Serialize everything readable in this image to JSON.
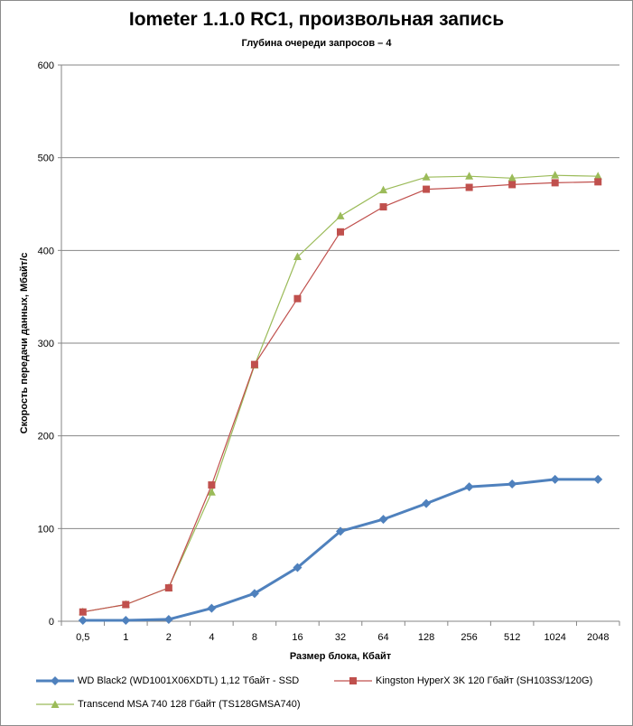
{
  "chart_data": {
    "type": "line",
    "title": "Iometer 1.1.0 RC1, произвольная запись",
    "subtitle": "Глубина очереди запросов – 4",
    "xlabel": "Размер блока, Кбайт",
    "ylabel": "Скорость передачи данных, Мбайт/с",
    "categories": [
      "0,5",
      "1",
      "2",
      "4",
      "8",
      "16",
      "32",
      "64",
      "128",
      "256",
      "512",
      "1024",
      "2048"
    ],
    "ylim": [
      0,
      600
    ],
    "yticks": [
      "0",
      "100",
      "200",
      "300",
      "400",
      "500",
      "600"
    ],
    "grid": true,
    "legend_position": "bottom",
    "series": [
      {
        "name": "WD Black2 (WD1001X06XDTL) 1,12 Тбайт - SSD",
        "color": "#4f81bd",
        "marker": "diamond",
        "values": [
          1,
          1,
          2,
          14,
          30,
          58,
          97,
          110,
          127,
          145,
          148,
          153,
          153
        ]
      },
      {
        "name": "Kingston HyperX 3K 120 Гбайт (SH103S3/120G)",
        "color": "#c0504d",
        "marker": "square",
        "values": [
          10,
          18,
          36,
          147,
          277,
          348,
          420,
          447,
          466,
          468,
          471,
          473,
          474
        ]
      },
      {
        "name": "Transcend MSA 740 128 Гбайт (TS128GMSA740)",
        "color": "#9bbb59",
        "marker": "triangle",
        "values": [
          10,
          18,
          36,
          139,
          276,
          393,
          437,
          465,
          479,
          480,
          478,
          481,
          480
        ]
      }
    ]
  }
}
